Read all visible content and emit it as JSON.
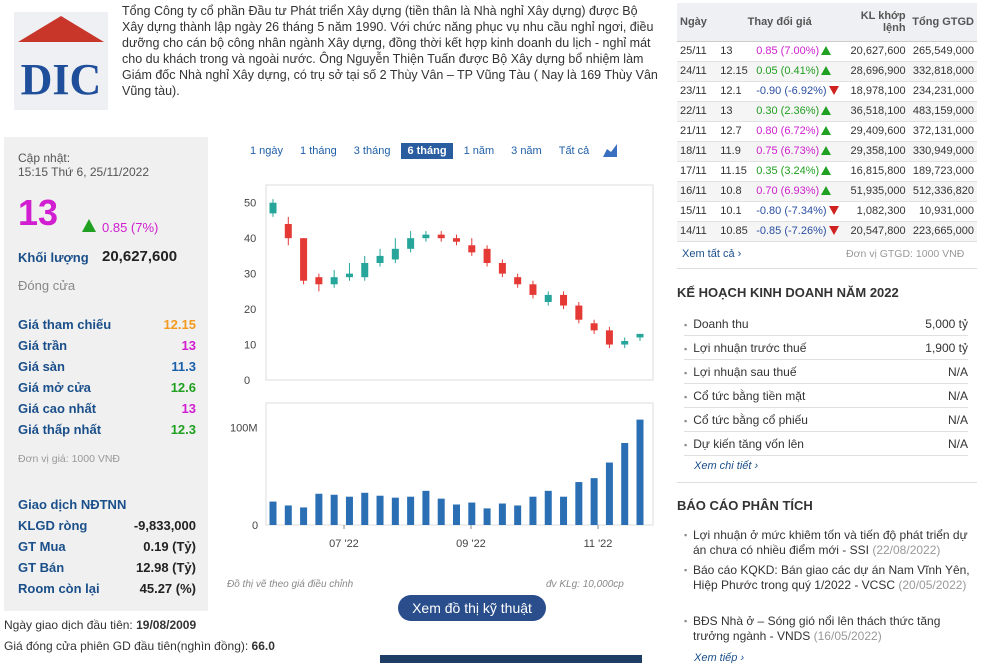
{
  "company": {
    "logo_text": "DIC",
    "description": "Tổng Công ty cổ phần Đầu tư Phát triển Xây dựng (tiền thân là Nhà nghỉ Xây dựng) được Bộ Xây dựng thành lập ngày 26 tháng 5 năm 1990. Với chức năng phục vụ nhu cầu nghỉ ngơi, điều dưỡng cho cán bộ công nhân ngành Xây dựng, đồng thời kết hợp kinh doanh du lịch - nghỉ mát cho du khách trong và ngoài nước. Ông Nguyễn Thiện Tuấn được Bộ Xây dựng bổ nhiệm làm Giám đốc Nhà nghỉ Xây dựng, có trụ sở tại số 2 Thùy Vân – TP Vũng Tàu ( Nay là 169 Thùy Vân Vũng tàu)."
  },
  "quote": {
    "updated_label": "Cập nhật:",
    "updated_time": "15:15 Thứ 6, 25/11/2022",
    "price": "13",
    "change": "0.85 (7%)",
    "volume_label": "Khối lượng",
    "volume": "20,627,600",
    "status": "Đóng cửa",
    "ref_label": "Giá tham chiếu",
    "ref": "12.15",
    "ceiling_label": "Giá trần",
    "ceiling": "13",
    "floor_label": "Giá sàn",
    "floor": "11.3",
    "open_label": "Giá mở cửa",
    "open": "12.6",
    "high_label": "Giá cao nhất",
    "high": "13",
    "low_label": "Giá thấp nhất",
    "low": "12.3",
    "unit_note": "Đơn vị giá: 1000 VNĐ",
    "foreign_title": "Giao dịch NĐTNN",
    "net_label": "KLGD ròng",
    "net": "-9,833,000",
    "buy_label": "GT Mua",
    "buy": "0.19 (Tỷ)",
    "sell_label": "GT Bán",
    "sell": "12.98 (Tỷ)",
    "room_label": "Room còn lại",
    "room": "45.27 (%)"
  },
  "footer_info": {
    "first_trade_label": "Ngày giao dịch đầu tiên: ",
    "first_trade": "19/08/2009",
    "first_close_label": "Giá đóng cửa phiên GD đầu tiên(nghìn đồng): ",
    "first_close": "66.0"
  },
  "chart": {
    "periods": [
      "1 ngày",
      "1 tháng",
      "3 tháng",
      "6 tháng",
      "1 năm",
      "3 năm",
      "Tất cả"
    ],
    "active_period": "6 tháng",
    "note_left": "Đồ thị vẽ theo giá điều chỉnh",
    "note_right": "đv KLg: 10,000cp",
    "tech_button": "Xem đồ thị kỹ thuật"
  },
  "chart_data": {
    "type": "candlestick",
    "y_ticks": [
      "50",
      "40",
      "30",
      "20",
      "10",
      "0"
    ],
    "ylim": [
      0,
      55
    ],
    "volume_ticks": [
      "100M",
      "0"
    ],
    "x_ticks": [
      "07 '22",
      "09 '22",
      "11 '22"
    ],
    "candles": [
      {
        "o": 47,
        "c": 50,
        "h": 51,
        "l": 46
      },
      {
        "o": 44,
        "c": 40,
        "h": 46,
        "l": 38
      },
      {
        "o": 40,
        "c": 28,
        "h": 40,
        "l": 27
      },
      {
        "o": 29,
        "c": 27,
        "h": 30,
        "l": 25
      },
      {
        "o": 27,
        "c": 29,
        "h": 31,
        "l": 26
      },
      {
        "o": 29,
        "c": 30,
        "h": 33,
        "l": 28
      },
      {
        "o": 29,
        "c": 33,
        "h": 35,
        "l": 28
      },
      {
        "o": 33,
        "c": 35,
        "h": 37,
        "l": 32
      },
      {
        "o": 34,
        "c": 37,
        "h": 40,
        "l": 33
      },
      {
        "o": 37,
        "c": 40,
        "h": 42,
        "l": 36
      },
      {
        "o": 40,
        "c": 41,
        "h": 42,
        "l": 39
      },
      {
        "o": 41,
        "c": 40,
        "h": 42,
        "l": 39
      },
      {
        "o": 40,
        "c": 39,
        "h": 41,
        "l": 38
      },
      {
        "o": 38,
        "c": 36,
        "h": 40,
        "l": 35
      },
      {
        "o": 37,
        "c": 33,
        "h": 38,
        "l": 32
      },
      {
        "o": 33,
        "c": 30,
        "h": 34,
        "l": 29
      },
      {
        "o": 29,
        "c": 27,
        "h": 30,
        "l": 26
      },
      {
        "o": 27,
        "c": 24,
        "h": 28,
        "l": 23
      },
      {
        "o": 22,
        "c": 24,
        "h": 25,
        "l": 21
      },
      {
        "o": 24,
        "c": 21,
        "h": 25,
        "l": 20
      },
      {
        "o": 21,
        "c": 17,
        "h": 22,
        "l": 16
      },
      {
        "o": 16,
        "c": 14,
        "h": 17,
        "l": 13
      },
      {
        "o": 14,
        "c": 10,
        "h": 15,
        "l": 9
      },
      {
        "o": 10,
        "c": 11,
        "h": 12,
        "l": 9
      },
      {
        "o": 12,
        "c": 13,
        "h": 13,
        "l": 11
      }
    ],
    "volumes": [
      24,
      20,
      18,
      32,
      31,
      29,
      33,
      30,
      28,
      29,
      35,
      27,
      21,
      23,
      17,
      22,
      20,
      29,
      35,
      29,
      44,
      48,
      64,
      84,
      108
    ]
  },
  "history": {
    "headers": [
      "Ngày",
      "Thay đổi giá",
      "KL khớp lệnh",
      "Tổng GTGD"
    ],
    "rows": [
      {
        "date": "25/11",
        "price": "13",
        "change": "0.85 (7.00%)",
        "dir": "ceil",
        "vol": "20,627,600",
        "value": "265,549,000"
      },
      {
        "date": "24/11",
        "price": "12.15",
        "change": "0.05 (0.41%)",
        "dir": "up",
        "vol": "28,696,900",
        "value": "332,818,000"
      },
      {
        "date": "23/11",
        "price": "12.1",
        "change": "-0.90 (-6.92%)",
        "dir": "down",
        "vol": "18,978,100",
        "value": "234,231,000"
      },
      {
        "date": "22/11",
        "price": "13",
        "change": "0.30 (2.36%)",
        "dir": "up",
        "vol": "36,518,100",
        "value": "483,159,000"
      },
      {
        "date": "21/11",
        "price": "12.7",
        "change": "0.80 (6.72%)",
        "dir": "ceil",
        "vol": "29,409,600",
        "value": "372,131,000"
      },
      {
        "date": "18/11",
        "price": "11.9",
        "change": "0.75 (6.73%)",
        "dir": "ceil",
        "vol": "29,358,100",
        "value": "330,949,000"
      },
      {
        "date": "17/11",
        "price": "11.15",
        "change": "0.35 (3.24%)",
        "dir": "up",
        "vol": "16,815,800",
        "value": "189,723,000"
      },
      {
        "date": "16/11",
        "price": "10.8",
        "change": "0.70 (6.93%)",
        "dir": "ceil",
        "vol": "51,935,000",
        "value": "512,336,820"
      },
      {
        "date": "15/11",
        "price": "10.1",
        "change": "-0.80 (-7.34%)",
        "dir": "floor",
        "vol": "1,082,300",
        "value": "10,931,000"
      },
      {
        "date": "14/11",
        "price": "10.85",
        "change": "-0.85 (-7.26%)",
        "dir": "floor",
        "vol": "20,547,800",
        "value": "223,665,000"
      }
    ],
    "see_all": "Xem tất cả ›",
    "unit": "Đơn vị GTGD: 1000 VNĐ"
  },
  "plan": {
    "title": "KẾ HOẠCH KINH DOANH NĂM 2022",
    "rows": [
      {
        "k": "Doanh thu",
        "v": "5,000 tỷ"
      },
      {
        "k": "Lợi nhuận trước thuế",
        "v": "1,900 tỷ"
      },
      {
        "k": "Lợi nhuận sau thuế",
        "v": "N/A"
      },
      {
        "k": "Cổ tức bằng tiền mặt",
        "v": "N/A"
      },
      {
        "k": "Cổ tức bằng cổ phiếu",
        "v": "N/A"
      },
      {
        "k": "Dự kiến tăng vốn lên",
        "v": "N/A"
      }
    ],
    "more": "Xem chi tiết ›"
  },
  "analysis": {
    "title": "BÁO CÁO PHÂN TÍCH",
    "items": [
      {
        "text": "Lợi nhuận ở mức khiêm tốn và tiến độ phát triển dự án chưa có nhiều điểm mới - SSI",
        "date": "(22/08/2022)"
      },
      {
        "text": "Báo cáo KQKD: Bán giao các dự án Nam Vĩnh Yên, Hiệp Phước trong quý 1/2022 - VCSC",
        "date": "(20/05/2022)"
      },
      {
        "text": "BĐS Nhà ở – Sóng gió nổi lên thách thức tăng trưởng ngành - VNDS",
        "date": "(16/05/2022)"
      }
    ],
    "more": "Xem tiếp ›"
  }
}
